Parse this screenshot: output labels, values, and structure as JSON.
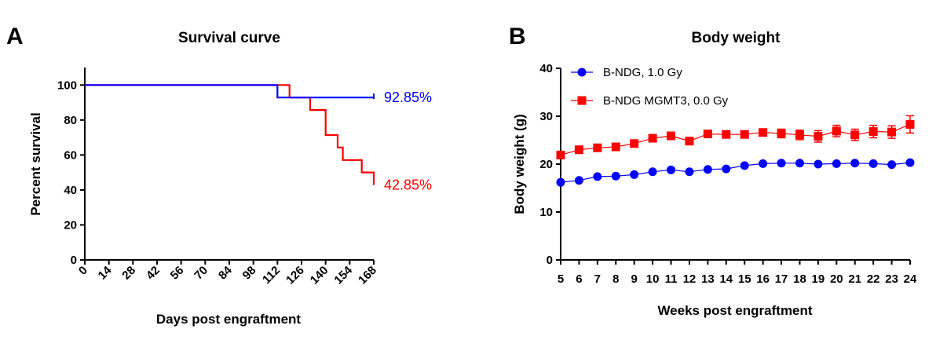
{
  "panel_a": {
    "letter": "A"
  },
  "panel_b": {
    "letter": "B"
  },
  "chart_data": [
    {
      "type": "line",
      "title": "Survival curve",
      "xlabel": "Days post engraftment",
      "ylabel": "Percent survival",
      "xlim": [
        0,
        168
      ],
      "ylim": [
        0,
        110
      ],
      "x_ticks": [
        "0",
        "14",
        "28",
        "42",
        "56",
        "70",
        "84",
        "98",
        "112",
        "126",
        "140",
        "154",
        "168"
      ],
      "y_ticks": [
        "0",
        "20",
        "40",
        "60",
        "80",
        "100"
      ],
      "series": [
        {
          "color": "#0000ff",
          "end_label": "92.85%",
          "steps": [
            [
              0,
              100
            ],
            [
              112,
              100
            ],
            [
              112,
              92.85
            ],
            [
              168,
              92.85
            ]
          ],
          "censor": [
            [
              168,
              92.85
            ]
          ]
        },
        {
          "color": "#ff0000",
          "end_label": "42.85%",
          "steps": [
            [
              0,
              100
            ],
            [
              119,
              100
            ],
            [
              119,
              92.85
            ],
            [
              131,
              92.85
            ],
            [
              131,
              85.7
            ],
            [
              140,
              85.7
            ],
            [
              140,
              71.4
            ],
            [
              147,
              71.4
            ],
            [
              147,
              64.3
            ],
            [
              150,
              64.3
            ],
            [
              150,
              57.1
            ],
            [
              161,
              57.1
            ],
            [
              161,
              50
            ],
            [
              168,
              50
            ],
            [
              168,
              42.85
            ]
          ]
        }
      ]
    },
    {
      "type": "line",
      "title": "Body weight",
      "xlabel": "Weeks post engraftment",
      "ylabel": "Body weight (g)",
      "xlim": [
        5,
        24
      ],
      "ylim": [
        0,
        40
      ],
      "x_ticks": [
        "5",
        "6",
        "7",
        "8",
        "9",
        "10",
        "11",
        "12",
        "13",
        "14",
        "15",
        "16",
        "17",
        "18",
        "19",
        "20",
        "21",
        "22",
        "23",
        "24"
      ],
      "y_ticks": [
        "0",
        "10",
        "20",
        "30",
        "40"
      ],
      "legend": "top-left",
      "series": [
        {
          "name": "B-NDG, 1.0 Gy",
          "color": "#0000ff",
          "marker": "circle",
          "x": [
            5,
            6,
            7,
            8,
            9,
            10,
            11,
            12,
            13,
            14,
            15,
            16,
            17,
            18,
            19,
            20,
            21,
            22,
            23,
            24
          ],
          "y": [
            16.2,
            16.6,
            17.4,
            17.5,
            17.8,
            18.4,
            18.8,
            18.4,
            18.9,
            19.0,
            19.7,
            20.1,
            20.2,
            20.2,
            20.0,
            20.1,
            20.2,
            20.1,
            19.9,
            20.3
          ],
          "err": [
            0,
            0,
            0,
            0,
            0,
            0,
            0,
            0,
            0,
            0,
            0,
            0,
            0,
            0,
            0,
            0,
            0,
            0,
            0,
            0
          ]
        },
        {
          "name": "B-NDG MGMT3, 0.0 Gy",
          "color": "#ff0000",
          "marker": "square",
          "x": [
            5,
            6,
            7,
            8,
            9,
            10,
            11,
            12,
            13,
            14,
            15,
            16,
            17,
            18,
            19,
            20,
            21,
            22,
            23,
            24
          ],
          "y": [
            21.9,
            23.0,
            23.4,
            23.6,
            24.3,
            25.4,
            25.9,
            24.8,
            26.3,
            26.2,
            26.2,
            26.6,
            26.4,
            26.1,
            25.8,
            26.9,
            26.1,
            26.8,
            26.7,
            28.3
          ],
          "err": [
            0,
            0,
            0,
            0,
            0,
            0,
            0,
            0,
            0,
            0,
            0,
            0,
            0.9,
            1.0,
            1.2,
            1.2,
            1.2,
            1.3,
            1.3,
            1.8
          ]
        }
      ]
    }
  ]
}
